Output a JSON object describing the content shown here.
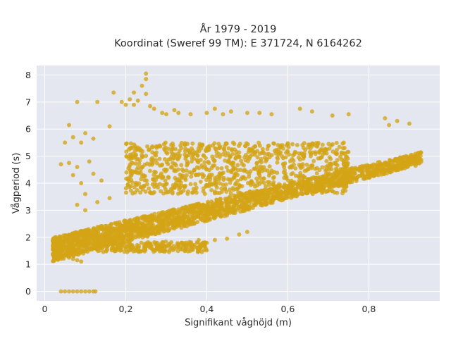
{
  "chart_data": {
    "type": "scatter",
    "title": [
      "År 1979 - 2019",
      "Koordinat (Sweref 99 TM): E 371724, N 6164262"
    ],
    "xlabel": "Signifikant våghöjd (m)",
    "ylabel": "Vågperiod (s)",
    "xlim": [
      -0.02,
      0.975
    ],
    "ylim": [
      -0.35,
      8.35
    ],
    "x_ticks": [
      0,
      0.2,
      0.4,
      0.6,
      0.8
    ],
    "x_tick_labels": [
      "0",
      "0,2",
      "0,4",
      "0,6",
      "0,8"
    ],
    "y_ticks": [
      0,
      1,
      2,
      3,
      4,
      5,
      6,
      7,
      8
    ],
    "y_tick_labels": [
      "0",
      "1",
      "2",
      "3",
      "4",
      "5",
      "6",
      "7",
      "8"
    ],
    "grid": true,
    "marker_color": "#d4a416",
    "plot_background": "#e5e7f0",
    "series": [
      {
        "zero_period_points": [
          [
            0.04,
            0
          ],
          [
            0.05,
            0
          ],
          [
            0.06,
            0
          ],
          [
            0.07,
            0
          ],
          [
            0.08,
            0
          ],
          [
            0.09,
            0
          ],
          [
            0.1,
            0
          ],
          [
            0.11,
            0
          ],
          [
            0.12,
            0
          ],
          [
            0.125,
            0
          ]
        ],
        "main_band": {
          "x_start": 0.02,
          "x_end": 0.93,
          "period_low_start": 1.1,
          "period_low_end": 4.7,
          "period_high_start": 2.0,
          "period_high_end": 5.15,
          "sample_points": 2200
        },
        "upper_band": {
          "x_start": 0.2,
          "x_end": 0.75,
          "period_low": 3.6,
          "period_high": 5.5,
          "sample_points": 900
        },
        "low_offset_band": {
          "x_start": 0.12,
          "x_end": 0.4,
          "period_low": 1.45,
          "period_high": 1.85,
          "sample_points": 260
        },
        "outlier_points": [
          [
            0.25,
            8.05
          ],
          [
            0.25,
            7.85
          ],
          [
            0.24,
            7.6
          ],
          [
            0.17,
            7.35
          ],
          [
            0.22,
            7.35
          ],
          [
            0.25,
            7.3
          ],
          [
            0.21,
            7.1
          ],
          [
            0.23,
            7.05
          ],
          [
            0.08,
            7.0
          ],
          [
            0.13,
            7.0
          ],
          [
            0.19,
            7.0
          ],
          [
            0.2,
            6.9
          ],
          [
            0.22,
            6.9
          ],
          [
            0.26,
            6.85
          ],
          [
            0.27,
            6.75
          ],
          [
            0.29,
            6.6
          ],
          [
            0.3,
            6.55
          ],
          [
            0.32,
            6.7
          ],
          [
            0.33,
            6.6
          ],
          [
            0.36,
            6.55
          ],
          [
            0.4,
            6.6
          ],
          [
            0.42,
            6.75
          ],
          [
            0.44,
            6.55
          ],
          [
            0.46,
            6.65
          ],
          [
            0.5,
            6.6
          ],
          [
            0.53,
            6.6
          ],
          [
            0.56,
            6.55
          ],
          [
            0.63,
            6.75
          ],
          [
            0.66,
            6.65
          ],
          [
            0.71,
            6.5
          ],
          [
            0.75,
            6.55
          ],
          [
            0.84,
            6.4
          ],
          [
            0.87,
            6.3
          ],
          [
            0.85,
            6.15
          ],
          [
            0.9,
            6.2
          ],
          [
            0.06,
            6.15
          ],
          [
            0.16,
            6.1
          ],
          [
            0.1,
            5.85
          ],
          [
            0.07,
            5.7
          ],
          [
            0.12,
            5.65
          ],
          [
            0.09,
            5.5
          ],
          [
            0.05,
            5.5
          ],
          [
            0.04,
            4.7
          ],
          [
            0.06,
            4.75
          ],
          [
            0.08,
            4.6
          ],
          [
            0.11,
            4.8
          ],
          [
            0.07,
            4.3
          ],
          [
            0.09,
            4.0
          ],
          [
            0.12,
            4.35
          ],
          [
            0.14,
            4.1
          ],
          [
            0.1,
            3.6
          ],
          [
            0.13,
            3.3
          ],
          [
            0.16,
            3.45
          ],
          [
            0.08,
            3.2
          ],
          [
            0.1,
            3.0
          ],
          [
            0.38,
            1.9
          ],
          [
            0.42,
            1.9
          ],
          [
            0.45,
            1.95
          ],
          [
            0.48,
            2.1
          ],
          [
            0.5,
            2.2
          ],
          [
            0.02,
            1.55
          ],
          [
            0.03,
            1.5
          ],
          [
            0.035,
            1.45
          ],
          [
            0.05,
            1.35
          ],
          [
            0.045,
            1.6
          ],
          [
            0.07,
            1.2
          ],
          [
            0.08,
            1.15
          ],
          [
            0.09,
            1.1
          ],
          [
            0.06,
            1.25
          ]
        ]
      }
    ]
  }
}
